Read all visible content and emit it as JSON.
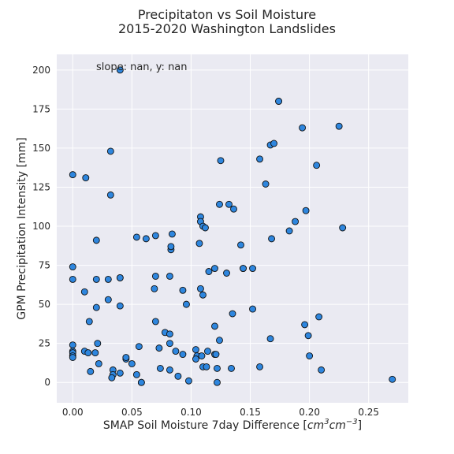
{
  "chart_data": {
    "type": "scatter",
    "title_line1": "Precipitaton vs Soil Moisture",
    "title_line2": "2015-2020 Washington Landslides",
    "xlabel_text": "SMAP Soil Moisture 7day Difference [",
    "xlabel_unit_base": "cm",
    "xlabel_unit_exp1": "3",
    "xlabel_unit_mid": "cm",
    "xlabel_unit_exp2": "−3",
    "xlabel_close": "]",
    "ylabel": "GPM Precipitation Intensity [mm]",
    "annotation": "slope: nan, y: nan",
    "xlim": [
      -0.0135,
      0.2835
    ],
    "ylim": [
      -13,
      210
    ],
    "x_ticks": [
      0.0,
      0.05,
      0.1,
      0.15,
      0.2,
      0.25
    ],
    "x_tick_labels": [
      "0.00",
      "0.05",
      "0.10",
      "0.15",
      "0.20",
      "0.25"
    ],
    "y_ticks": [
      0,
      25,
      50,
      75,
      100,
      125,
      150,
      175,
      200
    ],
    "y_tick_labels": [
      "0",
      "25",
      "50",
      "75",
      "100",
      "125",
      "150",
      "175",
      "200"
    ],
    "colors": {
      "background": "#eaeaf2",
      "marker_fill": "#2e86de",
      "marker_edge": "#111111",
      "grid": "#ffffff"
    },
    "points": [
      [
        0.04,
        200
      ],
      [
        0.0,
        133
      ],
      [
        0.011,
        131
      ],
      [
        0.032,
        148
      ],
      [
        0.032,
        120
      ],
      [
        0.02,
        91
      ],
      [
        0.0,
        74
      ],
      [
        0.0,
        66
      ],
      [
        0.02,
        66
      ],
      [
        0.03,
        66
      ],
      [
        0.04,
        67
      ],
      [
        0.04,
        67
      ],
      [
        0.01,
        58
      ],
      [
        0.03,
        53
      ],
      [
        0.02,
        48
      ],
      [
        0.04,
        49
      ],
      [
        0.014,
        39
      ],
      [
        0.021,
        25
      ],
      [
        0.0,
        24
      ],
      [
        0.0,
        20
      ],
      [
        0.0,
        19
      ],
      [
        0.0,
        17
      ],
      [
        0.0,
        16
      ],
      [
        0.01,
        20
      ],
      [
        0.013,
        19
      ],
      [
        0.019,
        19
      ],
      [
        0.022,
        12
      ],
      [
        0.015,
        7
      ],
      [
        0.034,
        8
      ],
      [
        0.034,
        5
      ],
      [
        0.033,
        3
      ],
      [
        0.04,
        6
      ],
      [
        0.045,
        15
      ],
      [
        0.045,
        16
      ],
      [
        0.05,
        12
      ],
      [
        0.054,
        5
      ],
      [
        0.056,
        23
      ],
      [
        0.058,
        0
      ],
      [
        0.058,
        0
      ],
      [
        0.054,
        93
      ],
      [
        0.062,
        92
      ],
      [
        0.07,
        94
      ],
      [
        0.084,
        95
      ],
      [
        0.083,
        85
      ],
      [
        0.083,
        87
      ],
      [
        0.082,
        68
      ],
      [
        0.07,
        68
      ],
      [
        0.069,
        60
      ],
      [
        0.093,
        59
      ],
      [
        0.096,
        50
      ],
      [
        0.07,
        39
      ],
      [
        0.078,
        32
      ],
      [
        0.082,
        31
      ],
      [
        0.082,
        25
      ],
      [
        0.073,
        22
      ],
      [
        0.087,
        20
      ],
      [
        0.093,
        18
      ],
      [
        0.074,
        9
      ],
      [
        0.082,
        8
      ],
      [
        0.089,
        4
      ],
      [
        0.098,
        1
      ],
      [
        0.108,
        106
      ],
      [
        0.108,
        103
      ],
      [
        0.11,
        100
      ],
      [
        0.112,
        99
      ],
      [
        0.107,
        89
      ],
      [
        0.115,
        71
      ],
      [
        0.12,
        73
      ],
      [
        0.108,
        60
      ],
      [
        0.11,
        56
      ],
      [
        0.13,
        70
      ],
      [
        0.124,
        114
      ],
      [
        0.125,
        142
      ],
      [
        0.132,
        114
      ],
      [
        0.136,
        111
      ],
      [
        0.142,
        88
      ],
      [
        0.144,
        73
      ],
      [
        0.144,
        73
      ],
      [
        0.152,
        73
      ],
      [
        0.12,
        36
      ],
      [
        0.135,
        44
      ],
      [
        0.152,
        47
      ],
      [
        0.124,
        27
      ],
      [
        0.104,
        21
      ],
      [
        0.105,
        17
      ],
      [
        0.104,
        15
      ],
      [
        0.109,
        17
      ],
      [
        0.114,
        20
      ],
      [
        0.12,
        18
      ],
      [
        0.121,
        18
      ],
      [
        0.11,
        10
      ],
      [
        0.113,
        10
      ],
      [
        0.122,
        9
      ],
      [
        0.122,
        0
      ],
      [
        0.134,
        9
      ],
      [
        0.158,
        143
      ],
      [
        0.163,
        127
      ],
      [
        0.167,
        152
      ],
      [
        0.17,
        153
      ],
      [
        0.174,
        180
      ],
      [
        0.174,
        180
      ],
      [
        0.168,
        92
      ],
      [
        0.183,
        97
      ],
      [
        0.188,
        103
      ],
      [
        0.194,
        163
      ],
      [
        0.197,
        110
      ],
      [
        0.206,
        139
      ],
      [
        0.225,
        164
      ],
      [
        0.228,
        99
      ],
      [
        0.167,
        28
      ],
      [
        0.196,
        37
      ],
      [
        0.199,
        30
      ],
      [
        0.208,
        42
      ],
      [
        0.2,
        17
      ],
      [
        0.21,
        8
      ],
      [
        0.158,
        10
      ],
      [
        0.27,
        2
      ]
    ]
  }
}
